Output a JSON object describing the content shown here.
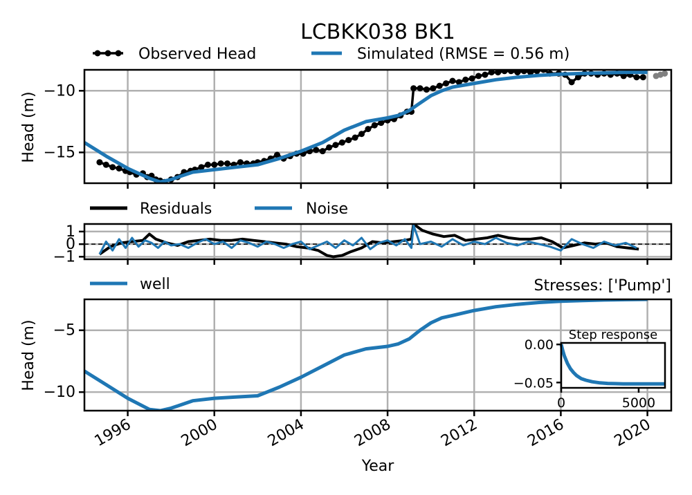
{
  "title": "LCBKK038 BK1",
  "colors": {
    "observed": "#000000",
    "simulated": "#1f77b4",
    "residuals": "#000000",
    "noise": "#1f77b4",
    "well": "#1f77b4",
    "grid": "#b0b0b0",
    "outlier": "#808080"
  },
  "chart_data": [
    {
      "type": "line",
      "panel": "head",
      "ylabel": "Head (m)",
      "xlim": [
        1994.0,
        2021.1
      ],
      "ylim": [
        -17.5,
        -8.3
      ],
      "yticks": [
        -10,
        -15
      ],
      "ytick_labels": [
        "−10",
        "−15"
      ],
      "grid": true,
      "legend": {
        "placement": "top-left",
        "entries": [
          "Observed Head",
          "Simulated (RMSE = 0.56 m)"
        ]
      },
      "series": [
        {
          "name": "Observed Head",
          "style": "line-markers",
          "x": [
            1994.7,
            1995.0,
            1995.3,
            1995.6,
            1995.9,
            1996.1,
            1996.4,
            1996.7,
            1996.9,
            1997.1,
            1997.3,
            1997.5,
            1997.7,
            1998.0,
            1998.3,
            1998.6,
            1998.9,
            1999.1,
            1999.4,
            1999.7,
            2000.0,
            2000.3,
            2000.6,
            2000.9,
            2001.2,
            2001.5,
            2001.8,
            2002.0,
            2002.3,
            2002.6,
            2002.9,
            2003.2,
            2003.5,
            2003.8,
            2004.1,
            2004.4,
            2004.7,
            2005.0,
            2005.3,
            2005.6,
            2005.9,
            2006.2,
            2006.5,
            2006.8,
            2007.1,
            2007.4,
            2007.7,
            2008.0,
            2008.3,
            2008.6,
            2008.9,
            2009.1,
            2009.2,
            2009.5,
            2009.8,
            2010.1,
            2010.4,
            2010.7,
            2011.0,
            2011.3,
            2011.6,
            2011.9,
            2012.2,
            2012.5,
            2012.8,
            2013.1,
            2013.4,
            2013.7,
            2014.0,
            2014.3,
            2014.6,
            2014.9,
            2015.2,
            2015.5,
            2015.9,
            2016.2,
            2016.5,
            2016.8,
            2017.1,
            2017.4,
            2017.7,
            2018.0,
            2018.3,
            2018.6,
            2018.9,
            2019.2,
            2019.5,
            2019.8
          ],
          "y": [
            -15.8,
            -16.0,
            -16.2,
            -16.3,
            -16.5,
            -16.6,
            -16.8,
            -16.7,
            -17.0,
            -16.9,
            -17.2,
            -17.3,
            -17.4,
            -17.2,
            -17.0,
            -16.6,
            -16.5,
            -16.4,
            -16.2,
            -16.0,
            -16.0,
            -15.9,
            -15.9,
            -16.0,
            -15.8,
            -15.9,
            -15.9,
            -15.8,
            -15.7,
            -15.5,
            -15.2,
            -15.5,
            -15.3,
            -15.1,
            -15.1,
            -14.9,
            -14.8,
            -14.9,
            -14.6,
            -14.4,
            -14.2,
            -14.0,
            -13.8,
            -13.5,
            -13.1,
            -12.8,
            -12.6,
            -12.4,
            -12.3,
            -12.0,
            -11.7,
            -11.7,
            -9.8,
            -9.8,
            -9.9,
            -9.8,
            -9.6,
            -9.4,
            -9.2,
            -9.3,
            -9.1,
            -9.0,
            -8.8,
            -8.7,
            -8.5,
            -8.5,
            -8.4,
            -8.4,
            -8.5,
            -8.4,
            -8.5,
            -8.4,
            -8.3,
            -8.6,
            -8.6,
            -8.7,
            -9.3,
            -8.9,
            -8.6,
            -8.6,
            -8.7,
            -8.6,
            -8.7,
            -8.6,
            -8.8,
            -8.7,
            -8.9,
            -8.9
          ]
        },
        {
          "name": "Simulated (RMSE = 0.56 m)",
          "style": "line",
          "x": [
            1994.0,
            1995.0,
            1996.0,
            1997.0,
            1997.5,
            1998.0,
            1998.5,
            1999.0,
            2000.0,
            2001.0,
            2002.0,
            2003.0,
            2004.0,
            2005.0,
            2006.0,
            2007.0,
            2008.0,
            2008.5,
            2009.0,
            2009.5,
            2010.0,
            2010.5,
            2011.0,
            2012.0,
            2013.0,
            2014.0,
            2015.0,
            2016.0,
            2017.0,
            2018.0,
            2019.0,
            2020.0
          ],
          "y": [
            -14.2,
            -15.3,
            -16.3,
            -17.1,
            -17.4,
            -17.2,
            -16.9,
            -16.6,
            -16.4,
            -16.2,
            -16.0,
            -15.5,
            -14.9,
            -14.2,
            -13.2,
            -12.5,
            -12.2,
            -12.0,
            -11.6,
            -11.0,
            -10.4,
            -10.0,
            -9.7,
            -9.4,
            -9.1,
            -8.9,
            -8.75,
            -8.65,
            -8.6,
            -8.55,
            -8.5,
            -8.5
          ]
        },
        {
          "name": "",
          "style": "markers-gray",
          "x": [
            2020.4,
            2020.6,
            2020.8
          ],
          "y": [
            -8.8,
            -8.7,
            -8.6
          ]
        }
      ]
    },
    {
      "type": "line",
      "panel": "residuals",
      "xlim": [
        1994.0,
        2021.1
      ],
      "ylim": [
        -1.2,
        1.6
      ],
      "yticks": [
        1,
        0,
        -1
      ],
      "ytick_labels": [
        "1",
        "0",
        "−1"
      ],
      "grid": true,
      "legend": {
        "placement": "top-left",
        "entries": [
          "Residuals",
          "Noise"
        ]
      },
      "series": [
        {
          "name": "Residuals",
          "x": [
            1994.7,
            1995.2,
            1995.7,
            1996.2,
            1996.7,
            1997.0,
            1997.3,
            1997.8,
            1998.3,
            1998.8,
            1999.3,
            1999.8,
            2000.3,
            2000.8,
            2001.3,
            2001.8,
            2002.3,
            2002.8,
            2003.3,
            2003.8,
            2004.3,
            2004.8,
            2005.2,
            2005.5,
            2005.9,
            2006.3,
            2006.8,
            2007.3,
            2007.8,
            2008.3,
            2008.8,
            2009.1,
            2009.2,
            2009.6,
            2010.1,
            2010.6,
            2011.1,
            2011.6,
            2012.1,
            2012.6,
            2013.1,
            2013.6,
            2014.1,
            2014.6,
            2015.1,
            2015.6,
            2016.1,
            2016.6,
            2017.1,
            2017.6,
            2018.1,
            2018.6,
            2019.1,
            2019.6
          ],
          "y": [
            -0.8,
            -0.2,
            0.1,
            0.2,
            0.3,
            0.8,
            0.4,
            0.1,
            -0.1,
            0.2,
            0.3,
            0.4,
            0.3,
            0.3,
            0.4,
            0.3,
            0.2,
            0.1,
            0.0,
            -0.2,
            -0.3,
            -0.5,
            -0.9,
            -1.0,
            -0.9,
            -0.6,
            -0.3,
            0.2,
            0.1,
            0.2,
            0.3,
            0.4,
            1.6,
            1.1,
            0.8,
            0.6,
            0.7,
            0.3,
            0.4,
            0.5,
            0.7,
            0.5,
            0.4,
            0.4,
            0.5,
            0.2,
            -0.3,
            -0.1,
            0.1,
            0.0,
            0.1,
            -0.2,
            -0.3,
            -0.4
          ]
        },
        {
          "name": "Noise",
          "x": [
            1994.7,
            1995.0,
            1995.3,
            1995.6,
            1995.9,
            1996.2,
            1996.5,
            1996.8,
            1997.1,
            1997.4,
            1997.7,
            1998.0,
            1998.4,
            1998.8,
            1999.2,
            1999.6,
            2000.0,
            2000.4,
            2000.8,
            2001.2,
            2001.6,
            2002.0,
            2002.4,
            2002.8,
            2003.2,
            2003.6,
            2004.0,
            2004.4,
            2004.8,
            2005.2,
            2005.6,
            2006.0,
            2006.4,
            2006.8,
            2007.2,
            2007.6,
            2008.0,
            2008.4,
            2008.8,
            2009.1,
            2009.2,
            2009.5,
            2010.0,
            2010.5,
            2011.0,
            2011.5,
            2012.0,
            2012.5,
            2013.0,
            2013.5,
            2014.0,
            2014.5,
            2015.0,
            2015.5,
            2016.0,
            2016.5,
            2017.0,
            2017.5,
            2018.0,
            2018.5,
            2019.0,
            2019.5
          ],
          "y": [
            -0.8,
            0.2,
            -0.5,
            0.4,
            -0.3,
            0.5,
            -0.2,
            0.3,
            0.1,
            -0.3,
            0.2,
            -0.1,
            0.0,
            -0.3,
            0.1,
            0.4,
            0.0,
            0.2,
            -0.3,
            0.3,
            0.1,
            -0.2,
            0.2,
            0.0,
            -0.3,
            0.0,
            0.2,
            -0.4,
            -0.1,
            0.2,
            -0.3,
            0.3,
            -0.1,
            0.5,
            -0.4,
            0.1,
            0.3,
            -0.1,
            0.4,
            -0.3,
            1.5,
            0.0,
            0.2,
            -0.2,
            0.4,
            -0.1,
            0.2,
            0.0,
            0.5,
            0.1,
            -0.1,
            0.2,
            0.0,
            -0.2,
            -0.5,
            0.4,
            0.0,
            -0.3,
            0.2,
            -0.1,
            0.1,
            -0.3
          ]
        }
      ]
    },
    {
      "type": "line",
      "panel": "contribution",
      "ylabel": "Head (m)",
      "xlabel": "Year",
      "xlim": [
        1994.0,
        2021.1
      ],
      "ylim": [
        -11.5,
        -2.5
      ],
      "yticks": [
        -5,
        -10
      ],
      "ytick_labels": [
        "−5",
        "−10"
      ],
      "xticks": [
        1996,
        2000,
        2004,
        2008,
        2012,
        2016,
        2020
      ],
      "xtick_labels": [
        "1996",
        "2000",
        "2004",
        "2008",
        "2012",
        "2016",
        "2020"
      ],
      "grid": true,
      "right_label": "Stresses: ['Pump']",
      "legend": {
        "placement": "top-left",
        "entries": [
          "well"
        ]
      },
      "series": [
        {
          "name": "well",
          "x": [
            1994.0,
            1995.0,
            1996.0,
            1997.0,
            1997.5,
            1998.0,
            1998.5,
            1999.0,
            2000.0,
            2001.0,
            2002.0,
            2003.0,
            2004.0,
            2005.0,
            2006.0,
            2007.0,
            2008.0,
            2008.5,
            2009.0,
            2009.5,
            2010.0,
            2010.5,
            2011.0,
            2012.0,
            2013.0,
            2014.0,
            2015.0,
            2016.0,
            2017.0,
            2018.0,
            2019.0,
            2020.0
          ],
          "y": [
            -8.3,
            -9.4,
            -10.5,
            -11.4,
            -11.5,
            -11.3,
            -11.0,
            -10.7,
            -10.5,
            -10.4,
            -10.3,
            -9.6,
            -8.8,
            -7.9,
            -7.0,
            -6.5,
            -6.3,
            -6.1,
            -5.7,
            -5.0,
            -4.4,
            -4.0,
            -3.8,
            -3.4,
            -3.1,
            -2.9,
            -2.75,
            -2.65,
            -2.6,
            -2.55,
            -2.52,
            -2.5
          ]
        }
      ]
    },
    {
      "type": "line",
      "panel": "step-response-inset",
      "title": "Step response",
      "xlim": [
        0,
        6700
      ],
      "ylim": [
        -0.057,
        0.002
      ],
      "xticks": [
        0,
        5000
      ],
      "xtick_labels": [
        "0",
        "5000"
      ],
      "yticks": [
        0.0,
        -0.05
      ],
      "ytick_labels": [
        "0.00",
        "−0.05"
      ],
      "grid": false,
      "series": [
        {
          "name": "",
          "x": [
            0,
            100,
            200,
            400,
            600,
            800,
            1000,
            1300,
            1600,
            2000,
            2500,
            3000,
            3500,
            4000,
            5000,
            6000,
            6700
          ],
          "y": [
            0.0,
            -0.008,
            -0.015,
            -0.025,
            -0.032,
            -0.037,
            -0.041,
            -0.045,
            -0.047,
            -0.049,
            -0.0505,
            -0.0512,
            -0.0515,
            -0.0517,
            -0.0518,
            -0.0518,
            -0.0518
          ]
        }
      ]
    }
  ]
}
